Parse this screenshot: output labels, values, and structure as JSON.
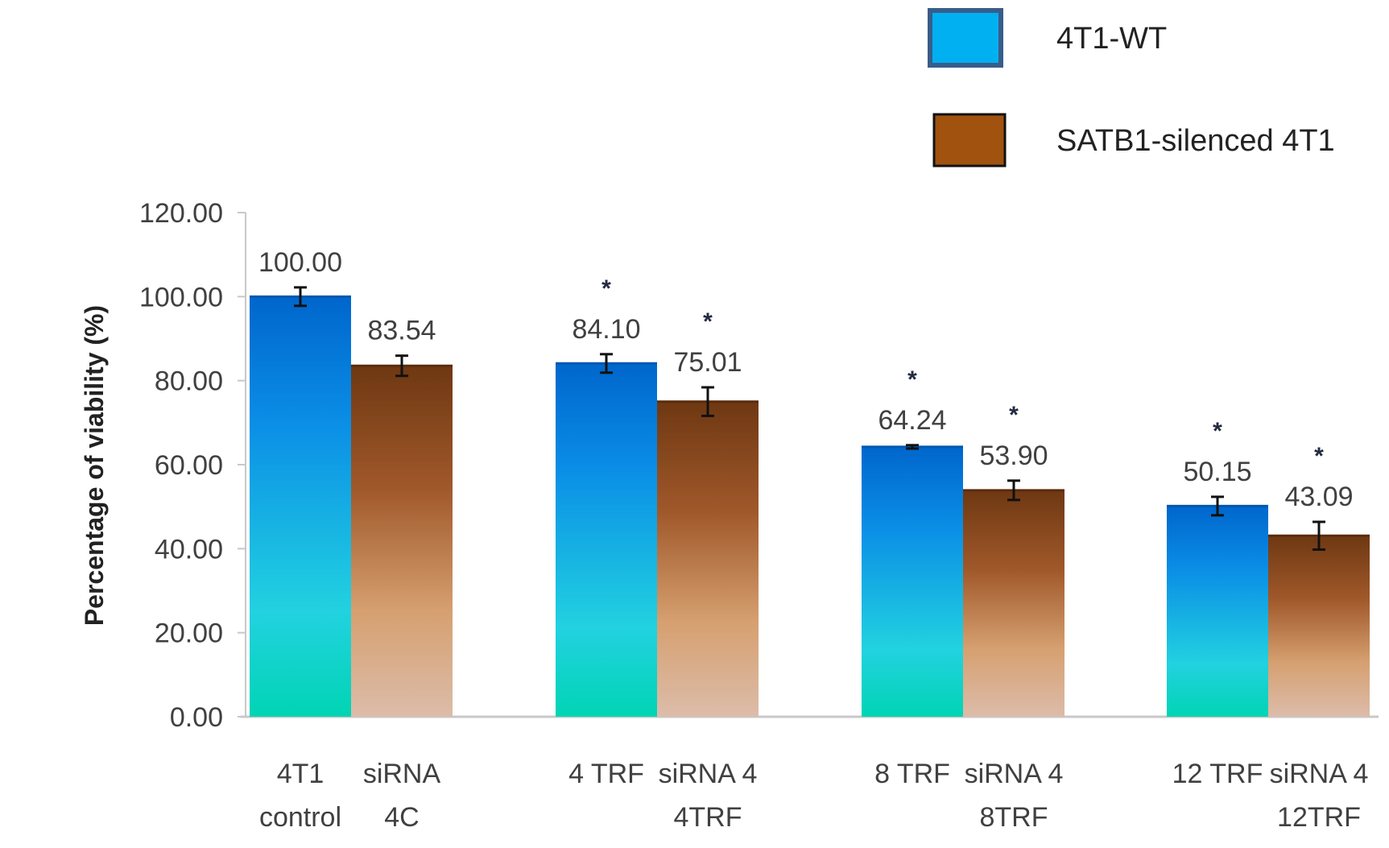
{
  "chart_data": {
    "type": "bar",
    "title": "",
    "xlabel": "",
    "ylabel": "Percentage of viability (%)",
    "ylim": [
      0,
      120
    ],
    "yticks": [
      "0.00",
      "20.00",
      "40.00",
      "60.00",
      "80.00",
      "100.00",
      "120.00"
    ],
    "grid": false,
    "legend_position": "top-right",
    "groups": [
      {
        "labels": [
          [
            "4T1",
            "control"
          ],
          [
            "siRNA",
            "4C"
          ]
        ]
      },
      {
        "labels": [
          [
            "4 TRF"
          ],
          [
            "siRNA 4",
            "4TRF"
          ]
        ]
      },
      {
        "labels": [
          [
            "8 TRF"
          ],
          [
            "siRNA 4",
            "8TRF"
          ]
        ]
      },
      {
        "labels": [
          [
            "12 TRF"
          ],
          [
            "siRNA 4",
            "12TRF"
          ]
        ]
      }
    ],
    "series": [
      {
        "name": "4T1-WT",
        "color": "#00b0f0",
        "gradient_top": "#0066cc",
        "gradient_bottom": "#00d4b4",
        "values": [
          100.0,
          84.1,
          64.24,
          50.15
        ],
        "value_labels": [
          "100.00",
          "84.10",
          "64.24",
          "50.15"
        ],
        "errors": [
          2.2,
          2.2,
          0.4,
          2.2
        ],
        "significant": [
          false,
          true,
          true,
          true
        ]
      },
      {
        "name": "SATB1-silenced 4T1",
        "color": "#a0520e",
        "gradient_top": "#6e3812",
        "gradient_bottom": "#dcbcaa",
        "values": [
          83.54,
          75.01,
          53.9,
          43.09
        ],
        "value_labels": [
          "83.54",
          "75.01",
          "53.90",
          "43.09"
        ],
        "errors": [
          2.4,
          3.4,
          2.3,
          3.3
        ],
        "significant": [
          false,
          true,
          true,
          true
        ]
      }
    ],
    "significance_marker": "*"
  }
}
